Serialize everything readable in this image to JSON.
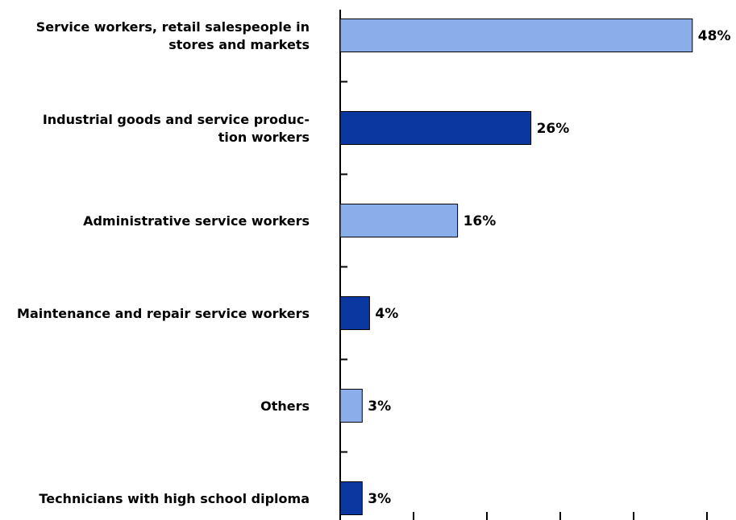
{
  "chart_data": {
    "type": "bar",
    "orientation": "horizontal",
    "categories": [
      [
        "Service workers, retail salespeople in",
        "stores and markets"
      ],
      [
        "Industrial goods and service produc-",
        "tion workers"
      ],
      [
        "Administrative service workers"
      ],
      [
        "Maintenance and repair service workers"
      ],
      [
        "Others"
      ],
      [
        "Technicians with high school diploma"
      ]
    ],
    "values": [
      48,
      26,
      16,
      4,
      3,
      3
    ],
    "value_labels": [
      "48%",
      "26%",
      "16%",
      "4%",
      "3%",
      "3%"
    ],
    "bar_colors": [
      "#8aaee9",
      "#0a37a0",
      "#8aaee9",
      "#0a37a0",
      "#8aaee9",
      "#0a37a0"
    ],
    "xlim": [
      0,
      50
    ],
    "x_ticks": [
      10,
      20,
      30,
      40,
      50
    ],
    "grid": false,
    "legend": "none"
  }
}
